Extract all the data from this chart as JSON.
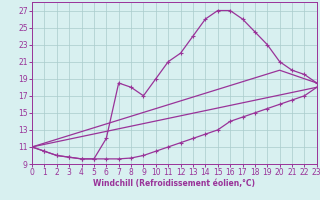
{
  "xlabel": "Windchill (Refroidissement éolien,°C)",
  "background_color": "#d8f0f0",
  "grid_color": "#aacccc",
  "line_color": "#993399",
  "xlim": [
    0,
    23
  ],
  "ylim": [
    9,
    28
  ],
  "xticks": [
    0,
    1,
    2,
    3,
    4,
    5,
    6,
    7,
    8,
    9,
    10,
    11,
    12,
    13,
    14,
    15,
    16,
    17,
    18,
    19,
    20,
    21,
    22,
    23
  ],
  "yticks": [
    9,
    11,
    13,
    15,
    17,
    19,
    21,
    23,
    25,
    27
  ],
  "line1_x": [
    0,
    1,
    2,
    3,
    4,
    5,
    6,
    7,
    8,
    9,
    10,
    11,
    12,
    13,
    14,
    15,
    16,
    17,
    18,
    19,
    20,
    21,
    22,
    23
  ],
  "line1_y": [
    11,
    10.5,
    10,
    9.8,
    9.6,
    9.6,
    12,
    18.5,
    18,
    17,
    19,
    21,
    22,
    24,
    26,
    27,
    27,
    26,
    24.5,
    23,
    21,
    20,
    19.5,
    18.5
  ],
  "line2_x": [
    0,
    1,
    2,
    3,
    4,
    5,
    6,
    7,
    8,
    9,
    10,
    11,
    12,
    13,
    14,
    15,
    16,
    17,
    18,
    19,
    20,
    21,
    22,
    23
  ],
  "line2_y": [
    11,
    10.5,
    10,
    9.8,
    9.6,
    9.6,
    9.6,
    9.6,
    9.7,
    10,
    10.5,
    11,
    11.5,
    12,
    12.5,
    13,
    14,
    14.5,
    15,
    15.5,
    16,
    16.5,
    17,
    18
  ],
  "line3_x": [
    0,
    20,
    23
  ],
  "line3_y": [
    11,
    20,
    18.5
  ],
  "line4_x": [
    0,
    23
  ],
  "line4_y": [
    11,
    18
  ]
}
